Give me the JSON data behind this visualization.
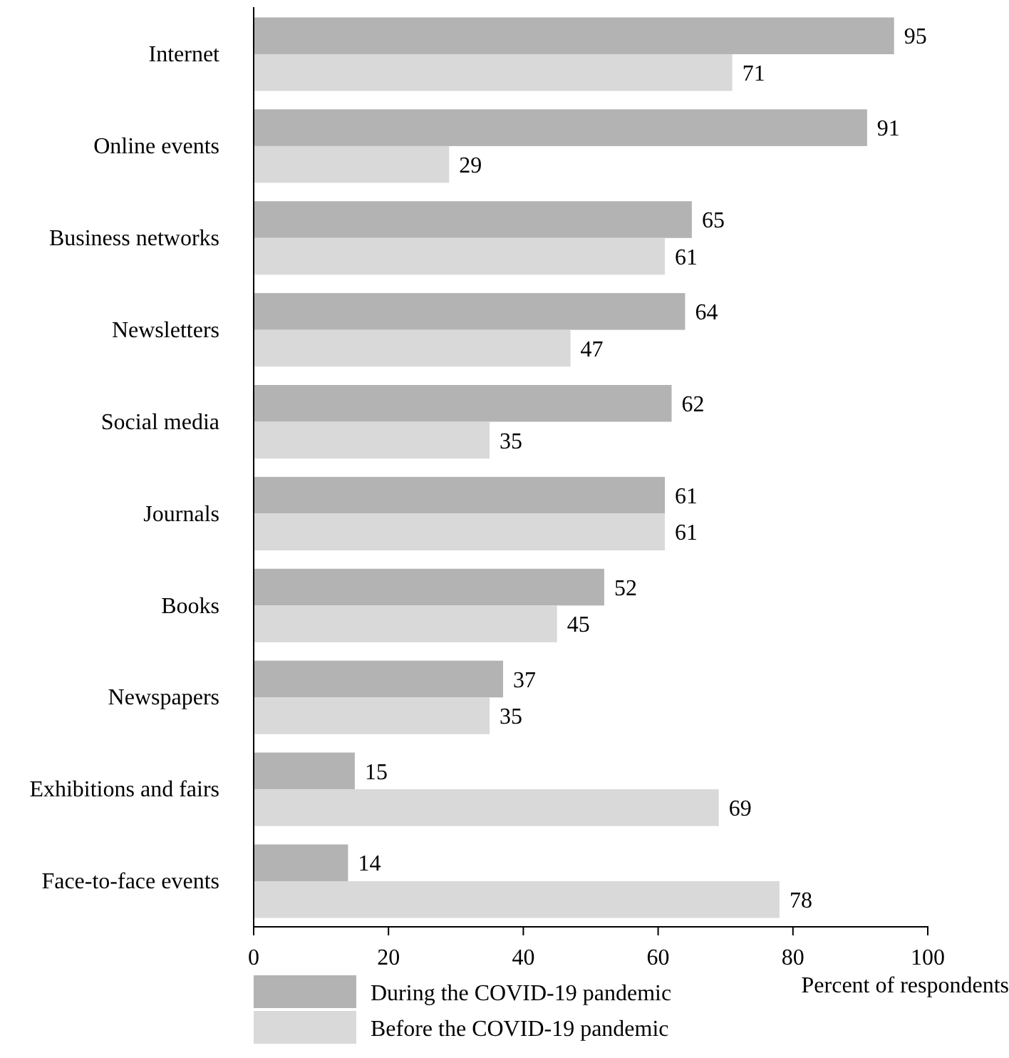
{
  "chart_data": {
    "type": "bar",
    "orientation": "horizontal",
    "xlabel": "Percent of respondents",
    "categories": [
      "Internet",
      "Online events",
      "Business networks",
      "Newsletters",
      "Social media",
      "Journals",
      "Books",
      "Newspapers",
      "Exhibitions and fairs",
      "Face-to-face events"
    ],
    "series": [
      {
        "name": "During the COVID-19 pandemic",
        "color": "#b3b3b3",
        "values": [
          95,
          91,
          65,
          64,
          62,
          61,
          52,
          37,
          15,
          14
        ]
      },
      {
        "name": "Before the COVID-19 pandemic",
        "color": "#d9d9d9",
        "values": [
          71,
          29,
          61,
          47,
          35,
          61,
          45,
          35,
          69,
          78
        ]
      }
    ],
    "xlim": [
      0,
      100
    ],
    "xticks": [
      0,
      20,
      40,
      60,
      80,
      100
    ],
    "data_labels": true,
    "legend": "bottom",
    "grid": false
  }
}
